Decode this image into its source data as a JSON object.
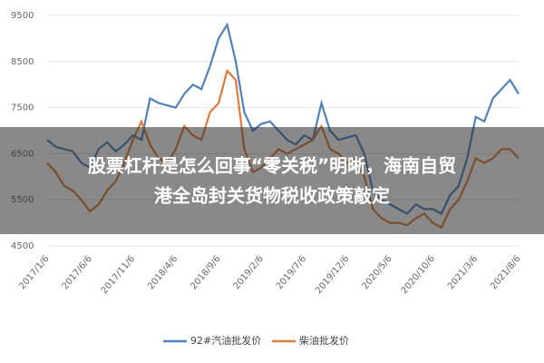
{
  "chart_data": {
    "type": "line",
    "categories": [
      "2017/1/6",
      null,
      null,
      null,
      null,
      "2017/6/6",
      null,
      null,
      null,
      null,
      "2017/11/6",
      null,
      null,
      null,
      null,
      "2018/4/6",
      null,
      null,
      null,
      null,
      "2018/9/6",
      null,
      null,
      null,
      null,
      "2019/2/6",
      null,
      null,
      null,
      null,
      "2019/7/6",
      null,
      null,
      null,
      null,
      "2019/12/6",
      null,
      null,
      null,
      null,
      "2020/5/6",
      null,
      null,
      null,
      null,
      "2020/10/6",
      null,
      null,
      null,
      null,
      "2021/3/6",
      null,
      null,
      null,
      null,
      "2021/8/6"
    ],
    "series": [
      {
        "name": "92#汽油批发价",
        "color": "#4f81bd",
        "values": [
          6800,
          6650,
          6600,
          6550,
          6300,
          6200,
          6600,
          6750,
          6550,
          6700,
          6900,
          6800,
          7700,
          7600,
          7550,
          7500,
          7800,
          8000,
          7900,
          8400,
          9000,
          9300,
          8500,
          7400,
          7000,
          7150,
          7200,
          7000,
          6800,
          6700,
          6900,
          6800,
          7600,
          7000,
          6800,
          6850,
          6900,
          6500,
          5700,
          5500,
          5400,
          5300,
          5200,
          5400,
          5300,
          5300,
          5200,
          5600,
          5800,
          6400,
          7300,
          7200,
          7700,
          7900,
          8100,
          7800
        ]
      },
      {
        "name": "柴油批发价",
        "color": "#e07b39",
        "values": [
          6300,
          6100,
          5800,
          5700,
          5500,
          5250,
          5400,
          5700,
          5900,
          6300,
          6800,
          7200,
          6700,
          6400,
          6300,
          6600,
          7100,
          6900,
          6800,
          7400,
          7600,
          8300,
          8100,
          6600,
          6100,
          6200,
          6400,
          6600,
          6500,
          6600,
          6700,
          6800,
          7100,
          6600,
          6500,
          6300,
          6400,
          6000,
          5300,
          5100,
          5000,
          5000,
          4950,
          5100,
          5200,
          5000,
          4900,
          5300,
          5500,
          5900,
          6400,
          6300,
          6400,
          6600,
          6600,
          6400
        ]
      }
    ],
    "ylim": [
      4500,
      9500
    ],
    "yticks": [
      4500,
      5500,
      6500,
      7500,
      8500,
      9500
    ],
    "grid": true,
    "legend": "bottom",
    "annotations": [
      "股票杠杆是怎么回事“零关税”明晰，海南自贸",
      "港全岛封关货物税收政策敲定"
    ]
  }
}
